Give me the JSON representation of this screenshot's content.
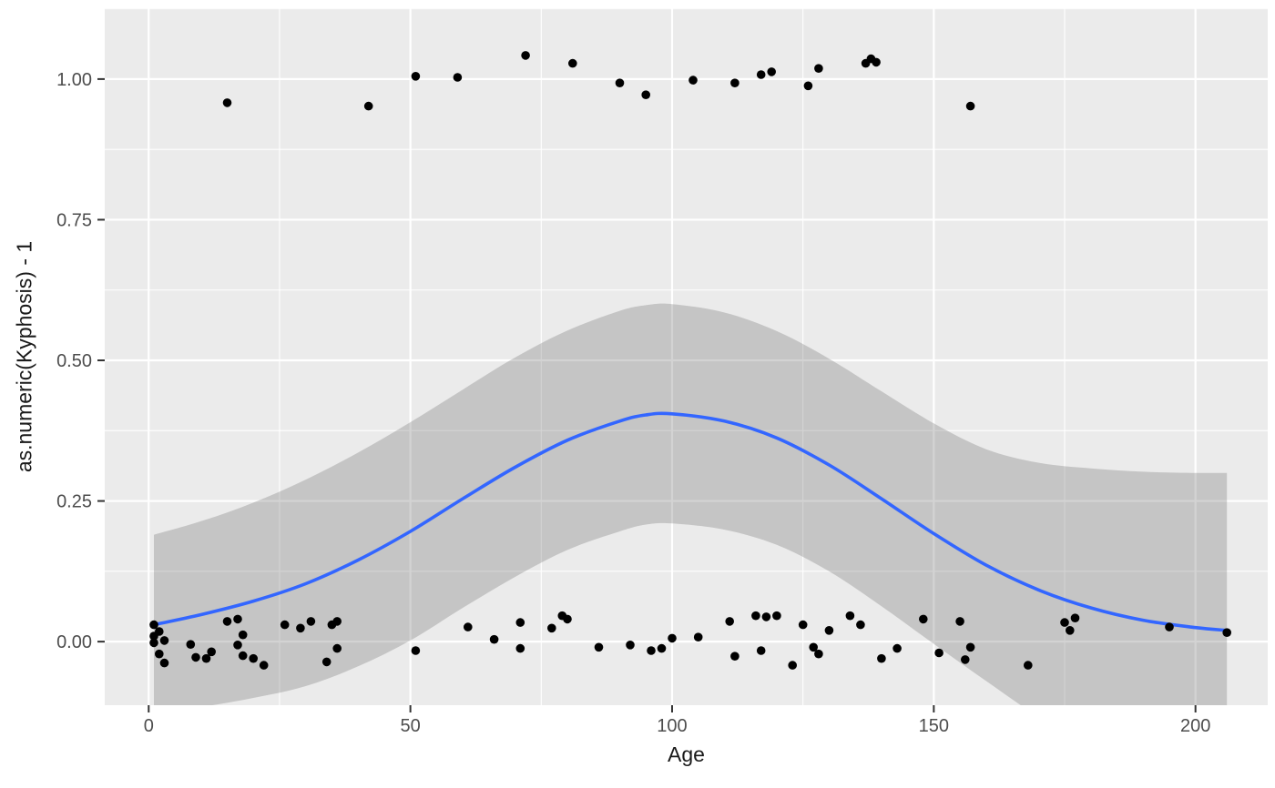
{
  "chart_data": {
    "type": "scatter",
    "title": "",
    "xlabel": "Age",
    "ylabel": "as.numeric(Kyphosis) - 1",
    "xlim": [
      -8.4,
      213.8
    ],
    "ylim": [
      -0.113,
      1.126
    ],
    "x_ticks": [
      0,
      50,
      100,
      150,
      200
    ],
    "x_tick_labels": [
      "0",
      "50",
      "100",
      "150",
      "200"
    ],
    "x_minor_ticks": [
      25,
      75,
      125,
      175
    ],
    "y_ticks": [
      0,
      0.25,
      0.5,
      0.75,
      1
    ],
    "y_tick_labels": [
      "0.00",
      "0.25",
      "0.50",
      "0.75",
      "1.00"
    ],
    "y_minor_ticks": [
      0.125,
      0.375,
      0.625,
      0.875,
      1.125
    ],
    "grid": true,
    "legend": "none",
    "style": {
      "panel_bg": "#EBEBEB",
      "grid_color": "#FFFFFF",
      "point_color": "#000000",
      "line_color": "#3366FF",
      "ribbon_color": "rgba(110,110,110,0.30)",
      "tick_color": "#333333",
      "tick_label_color": "#4D4D4D",
      "axis_title_color": "#1A1A1A"
    },
    "series": [
      {
        "name": "kyphosis-absent-points",
        "type": "scatter",
        "points": [
          [
            1,
            0.03
          ],
          [
            1,
            0.01
          ],
          [
            1,
            -0.002
          ],
          [
            2,
            0.018
          ],
          [
            2,
            -0.022
          ],
          [
            3,
            0.002
          ],
          [
            3,
            -0.038
          ],
          [
            8,
            -0.005
          ],
          [
            9,
            -0.028
          ],
          [
            11,
            -0.03
          ],
          [
            12,
            -0.018
          ],
          [
            15,
            0.036
          ],
          [
            17,
            0.04
          ],
          [
            17,
            -0.006
          ],
          [
            18,
            0.012
          ],
          [
            18,
            -0.025
          ],
          [
            20,
            -0.03
          ],
          [
            22,
            -0.042
          ],
          [
            26,
            0.03
          ],
          [
            29,
            0.024
          ],
          [
            31,
            0.036
          ],
          [
            34,
            -0.036
          ],
          [
            35,
            0.03
          ],
          [
            36,
            -0.012
          ],
          [
            36,
            0.036
          ],
          [
            51,
            -0.016
          ],
          [
            61,
            0.026
          ],
          [
            66,
            0.004
          ],
          [
            71,
            -0.012
          ],
          [
            71,
            0.034
          ],
          [
            77,
            0.024
          ],
          [
            79,
            0.046
          ],
          [
            80,
            0.04
          ],
          [
            86,
            -0.01
          ],
          [
            92,
            -0.006
          ],
          [
            96,
            -0.016
          ],
          [
            98,
            -0.012
          ],
          [
            100,
            0.006
          ],
          [
            105,
            0.008
          ],
          [
            111,
            0.036
          ],
          [
            112,
            -0.026
          ],
          [
            116,
            0.046
          ],
          [
            117,
            -0.016
          ],
          [
            118,
            0.044
          ],
          [
            120,
            0.046
          ],
          [
            123,
            -0.042
          ],
          [
            125,
            0.03
          ],
          [
            127,
            -0.01
          ],
          [
            128,
            -0.022
          ],
          [
            130,
            0.02
          ],
          [
            134,
            0.046
          ],
          [
            136,
            0.03
          ],
          [
            140,
            -0.03
          ],
          [
            143,
            -0.012
          ],
          [
            148,
            0.04
          ],
          [
            151,
            -0.02
          ],
          [
            155,
            0.036
          ],
          [
            156,
            -0.032
          ],
          [
            157,
            -0.01
          ],
          [
            168,
            -0.042
          ],
          [
            175,
            0.034
          ],
          [
            176,
            0.02
          ],
          [
            177,
            0.042
          ],
          [
            195,
            0.026
          ],
          [
            206,
            0.016
          ]
        ]
      },
      {
        "name": "kyphosis-present-points",
        "type": "scatter",
        "points": [
          [
            15,
            0.958
          ],
          [
            42,
            0.952
          ],
          [
            51,
            1.005
          ],
          [
            59,
            1.003
          ],
          [
            72,
            1.042
          ],
          [
            81,
            1.028
          ],
          [
            90,
            0.993
          ],
          [
            95,
            0.972
          ],
          [
            104,
            0.998
          ],
          [
            112,
            0.993
          ],
          [
            117,
            1.008
          ],
          [
            119,
            1.013
          ],
          [
            126,
            0.988
          ],
          [
            128,
            1.019
          ],
          [
            137,
            1.028
          ],
          [
            138,
            1.036
          ],
          [
            139,
            1.03
          ],
          [
            157,
            0.952
          ]
        ]
      },
      {
        "name": "loess-smooth",
        "type": "line",
        "x": [
          1,
          10,
          20,
          30,
          40,
          50,
          60,
          70,
          80,
          90,
          95,
          100,
          110,
          120,
          130,
          140,
          150,
          160,
          170,
          180,
          190,
          200,
          206
        ],
        "y": [
          0.03,
          0.048,
          0.072,
          0.103,
          0.145,
          0.196,
          0.254,
          0.31,
          0.358,
          0.392,
          0.403,
          0.405,
          0.392,
          0.362,
          0.314,
          0.254,
          0.192,
          0.136,
          0.092,
          0.06,
          0.038,
          0.025,
          0.02
        ]
      },
      {
        "name": "confidence-band",
        "type": "area",
        "x": [
          1,
          10,
          20,
          30,
          40,
          50,
          60,
          70,
          80,
          90,
          95,
          100,
          110,
          120,
          130,
          140,
          150,
          160,
          170,
          180,
          190,
          200,
          206
        ],
        "upper": [
          0.19,
          0.214,
          0.247,
          0.288,
          0.336,
          0.39,
          0.448,
          0.505,
          0.553,
          0.588,
          0.598,
          0.6,
          0.585,
          0.552,
          0.503,
          0.445,
          0.388,
          0.342,
          0.318,
          0.308,
          0.302,
          0.3,
          0.3
        ],
        "lower": [
          -0.125,
          -0.116,
          -0.1,
          -0.079,
          -0.044,
          0.002,
          0.06,
          0.115,
          0.163,
          0.196,
          0.208,
          0.21,
          0.199,
          0.172,
          0.125,
          0.063,
          -0.004,
          -0.07,
          -0.134,
          -0.188,
          -0.226,
          -0.25,
          -0.26
        ]
      }
    ]
  }
}
